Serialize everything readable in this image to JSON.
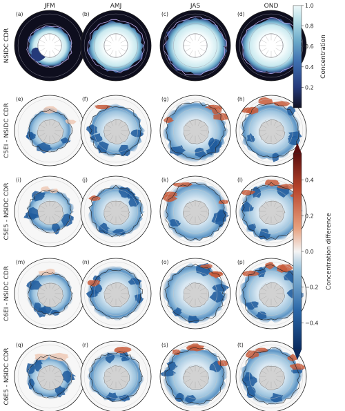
{
  "chart_data": {
    "type": "map",
    "columns": [
      "JFM",
      "AMJ",
      "JAS",
      "OND"
    ],
    "rows": [
      "NSIDC CDR",
      "C5EI - NSIDC CDR",
      "C5E5 - NSIDC CDR",
      "C6EI - NSIDC CDR",
      "C6E5 - NSIDC CDR"
    ],
    "panel_labels": [
      [
        "(a)",
        "(b)",
        "(c)",
        "(d)"
      ],
      [
        "(e)",
        "(f)",
        "(g)",
        "(h)"
      ],
      [
        "(i)",
        "(j)",
        "(k)",
        "(l)"
      ],
      [
        "(m)",
        "(n)",
        "(o)",
        "(p)"
      ],
      [
        "(q)",
        "(r)",
        "(s)",
        "(t)"
      ]
    ],
    "concentration_colorbar": {
      "label": "Concentration",
      "range": [
        0,
        1.0
      ],
      "ticks": [
        "0.2",
        "0.4",
        "0.6",
        "0.8",
        "1.0"
      ],
      "tick_values": [
        0.2,
        0.4,
        0.6,
        0.8,
        1.0
      ],
      "colors": [
        "#111122",
        "#253a7a",
        "#3e6fb0",
        "#6aa9c9",
        "#b4dde6",
        "#eef9fa"
      ]
    },
    "difference_colorbar": {
      "label": "Concentration difference",
      "range": [
        -0.55,
        0.55
      ],
      "ticks": [
        "−0.4",
        "−0.2",
        "0.0",
        "0.2",
        "0.4"
      ],
      "tick_values": [
        -0.4,
        -0.2,
        0.0,
        0.2,
        0.4
      ],
      "colors": [
        "#0a2a5e",
        "#2a67a8",
        "#8fbcd9",
        "#f4f4f4",
        "#e7a07e",
        "#b8452b",
        "#5a0f0f"
      ]
    },
    "colors": {
      "land": "#d2d2d2",
      "ocean_background": "#0e0e1e",
      "ice_high": "#e8f6f8",
      "ice_low": "#2f4d8c",
      "blue_negative": "#3b78b4",
      "red_positive": "#c75b3a"
    }
  }
}
